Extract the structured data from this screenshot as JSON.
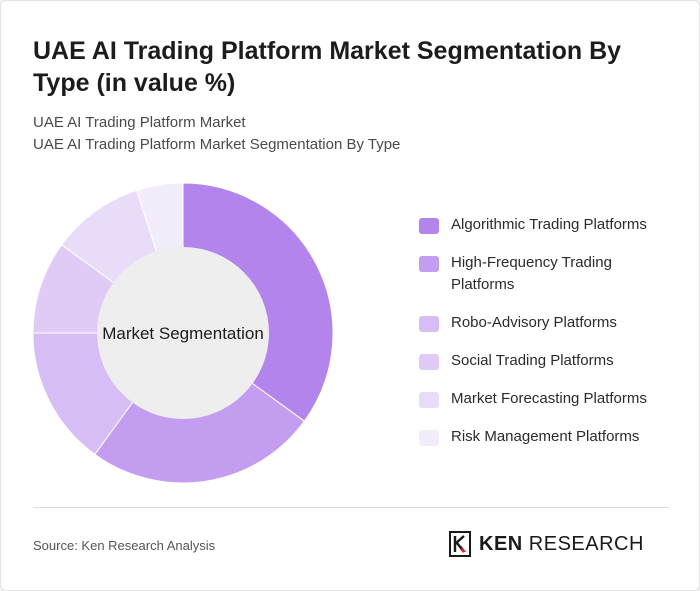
{
  "title": "UAE AI Trading Platform Market Segmentation By Type (in value %)",
  "subtitle_1": "UAE AI Trading Platform Market",
  "subtitle_2": "UAE AI Trading Platform Market Segmentation By Type",
  "source": "Source: Ken Research Analysis",
  "brand": {
    "strong": "KEN",
    "rest": "RESEARCH"
  },
  "chart_data": {
    "type": "pie",
    "center_label": "Market Segmentation",
    "categories": [
      "Algorithmic Trading Platforms",
      "High-Frequency Trading Platforms",
      "Robo-Advisory Platforms",
      "Social Trading Platforms",
      "Market Forecasting Platforms",
      "Risk Management Platforms"
    ],
    "values": [
      35,
      25,
      15,
      10,
      10,
      5
    ],
    "colors": [
      "#b384ec",
      "#c49df0",
      "#d6bdf5",
      "#e0cbf7",
      "#e9dcf9",
      "#f3edfb"
    ],
    "legend_position": "right"
  }
}
